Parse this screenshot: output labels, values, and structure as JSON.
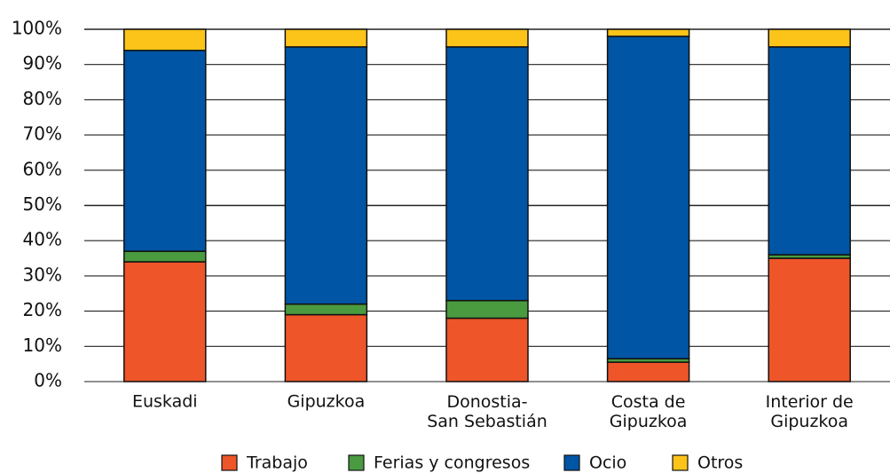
{
  "chart_data": {
    "type": "stacked_bar",
    "categories": [
      "Euskadi",
      "Gipuzkoa",
      "Donostia-\nSan Sebastián",
      "Costa de\nGipuzkoa",
      "Interior de\nGipuzkoa"
    ],
    "series": [
      {
        "name": "Trabajo",
        "color": "#ee5528",
        "values": [
          34,
          19,
          18,
          5.5,
          35
        ]
      },
      {
        "name": "Ferias y congresos",
        "color": "#4a9a40",
        "values": [
          3,
          3,
          5,
          1,
          1
        ]
      },
      {
        "name": "Ocio",
        "color": "#0055a4",
        "values": [
          57,
          73,
          72,
          91.5,
          59
        ]
      },
      {
        "name": "Otros",
        "color": "#fcc419",
        "values": [
          6,
          5,
          5,
          2,
          5
        ]
      }
    ],
    "ylim": [
      0,
      100
    ],
    "yticks": [
      {
        "value": 0,
        "label": "0%"
      },
      {
        "value": 10,
        "label": "10%"
      },
      {
        "value": 20,
        "label": "20%"
      },
      {
        "value": 30,
        "label": "30%"
      },
      {
        "value": 40,
        "label": "40%"
      },
      {
        "value": 50,
        "label": "50%"
      },
      {
        "value": 60,
        "label": "60%"
      },
      {
        "value": 70,
        "label": "70%"
      },
      {
        "value": 80,
        "label": "80%"
      },
      {
        "value": 90,
        "label": "90%"
      },
      {
        "value": 100,
        "label": "100%"
      }
    ],
    "grid": true,
    "legend": "bottom"
  }
}
